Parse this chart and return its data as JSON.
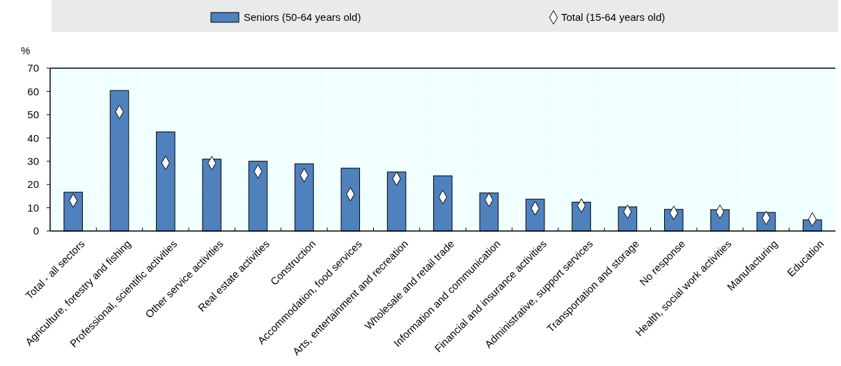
{
  "chart_data": {
    "type": "bar",
    "ylabel": "%",
    "categories": [
      "Total - all sectors",
      "Agriculture, forestry and fishing",
      "Professional, scientific activities",
      "Other service activities",
      "Real estate activities",
      "Construction",
      "Accommodation, food services",
      "Arts, entertainment and recreation",
      "Wholesale and retail trade",
      "Information and communication",
      "Financial and insurance activities",
      "Administrative, support services",
      "Transportation and storage",
      "No response",
      "Health, social work activities",
      "Manufacturing",
      "Education"
    ],
    "series": [
      {
        "name": "Seniors (50-64 years old)",
        "color": "#4f81bd",
        "values": [
          16.7,
          60.4,
          42.6,
          30.9,
          30.0,
          28.9,
          27.0,
          25.4,
          23.7,
          16.4,
          13.7,
          12.4,
          10.4,
          9.3,
          9.2,
          8.0,
          4.8
        ]
      },
      {
        "name": "Total (15-64 years old)",
        "type": "scatter",
        "marker": "diamond",
        "color": "#ffffff",
        "values": [
          13.1,
          51.2,
          29.3,
          29.2,
          25.6,
          24.0,
          15.8,
          22.5,
          14.6,
          13.4,
          9.8,
          10.9,
          8.3,
          7.8,
          8.3,
          5.6,
          5.0
        ]
      }
    ],
    "ylim": [
      0,
      70
    ],
    "yticks": [
      0,
      10,
      20,
      30,
      40,
      50,
      60,
      70
    ],
    "grid": true,
    "legend": "top"
  }
}
